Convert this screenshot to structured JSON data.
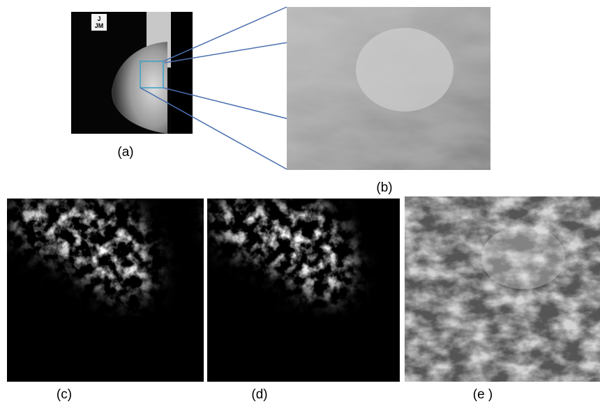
{
  "figure": {
    "image_marker": [
      "J",
      "JM"
    ],
    "panels": [
      {
        "label": "(a)"
      },
      {
        "label": "(b)"
      },
      {
        "label": "(c)"
      },
      {
        "label": "(d)"
      },
      {
        "label": "(e )"
      }
    ]
  }
}
